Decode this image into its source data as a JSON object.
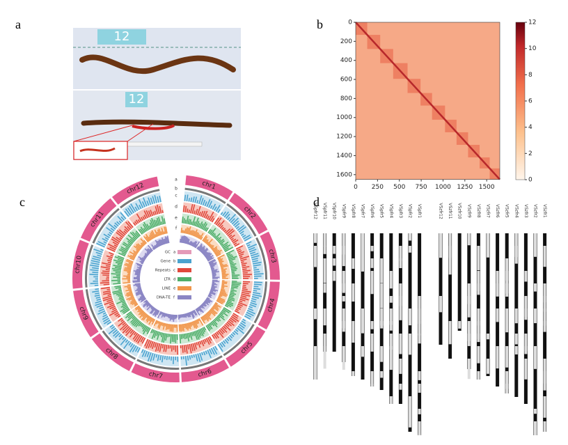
{
  "panels": {
    "a": {
      "label": "a",
      "photo_labels": [
        "12",
        "12"
      ]
    },
    "b": {
      "label": "b",
      "xlim": [
        0,
        1650
      ],
      "ylim": [
        0,
        1650
      ],
      "xticks": [
        0,
        250,
        500,
        750,
        1000,
        1250,
        1500
      ],
      "yticks": [
        0,
        200,
        400,
        600,
        800,
        1000,
        1200,
        1400,
        1600
      ],
      "colorbar_lim": [
        0,
        12
      ],
      "colorbar_ticks": [
        0,
        2,
        4,
        6,
        8,
        10,
        12
      ]
    },
    "c": {
      "label": "c",
      "chromosomes": [
        "chr1",
        "chr2",
        "chr3",
        "chr4",
        "chr5",
        "chr6",
        "chr7",
        "chr8",
        "chr9",
        "chr10",
        "chr11",
        "chr12"
      ],
      "tracks": [
        {
          "letter": "a",
          "name": "GC"
        },
        {
          "letter": "b",
          "name": "Gene"
        },
        {
          "letter": "c",
          "name": "Repeats"
        },
        {
          "letter": "d",
          "name": "LTR"
        },
        {
          "letter": "e",
          "name": "LINE"
        },
        {
          "letter": "f",
          "name": "DNA-TE"
        }
      ]
    },
    "d": {
      "label": "d",
      "group1": [
        "VSpfr12",
        "VSpfr11",
        "VSpfr10",
        "VSpfr9",
        "VSpfr8",
        "VSpfr7",
        "VSpfr6",
        "VSpfr5",
        "VSpfr4",
        "VSpfr3",
        "VSpfr2",
        "VSpfr1"
      ],
      "group2": [
        "VSzfr12",
        "VSzfr11",
        "VSzfr10",
        "VSzfr9",
        "VSzfr8",
        "VSzfr7",
        "VSzfr6",
        "VSzfr5",
        "VSzfr4",
        "VSzfr3",
        "VSzfr2",
        "VSzfr1"
      ]
    }
  }
}
